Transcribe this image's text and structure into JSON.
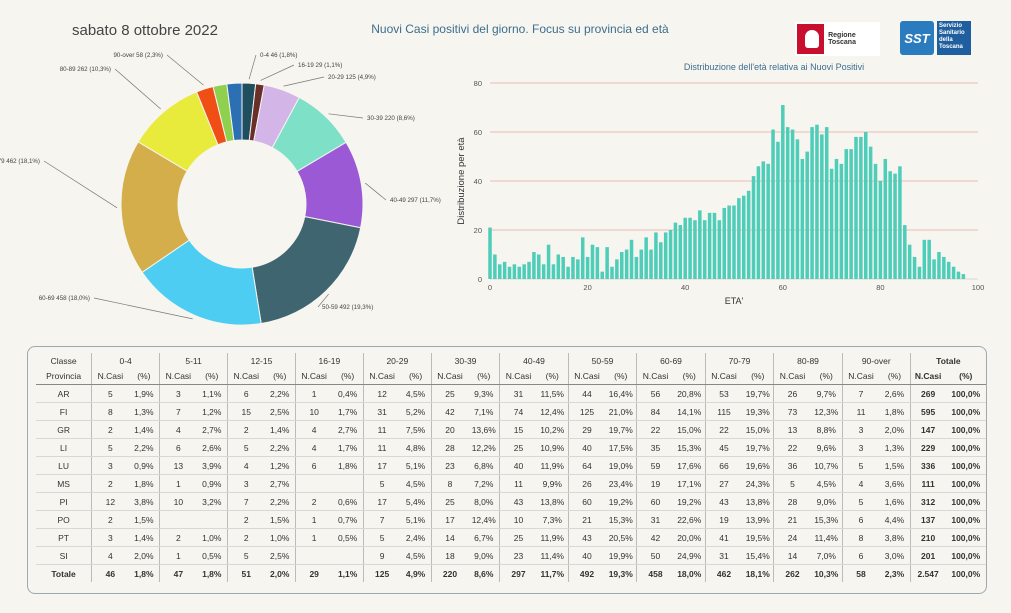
{
  "header": {
    "date": "sabato 8 ottobre 2022",
    "title": "Nuovi Casi positivi del giorno. Focus su provincia ed età",
    "logo_regione": "Regione Toscana",
    "logo_sst": "SST",
    "logo_sst_text": "Servizio Sanitario della Toscana"
  },
  "chart_data": [
    {
      "type": "pie",
      "donut": true,
      "slices": [
        {
          "label": "0-4",
          "value": 46,
          "pct": "1,8%",
          "color": "#1f4e5f"
        },
        {
          "label": "16-19",
          "value": 29,
          "pct": "1,1%",
          "color": "#6b2f2a"
        },
        {
          "label": "20-29",
          "value": 125,
          "pct": "4,9%",
          "color": "#d4b5e8"
        },
        {
          "label": "30-39",
          "value": 220,
          "pct": "8,6%",
          "color": "#7fe0c8"
        },
        {
          "label": "40-49",
          "value": 297,
          "pct": "11,7%",
          "color": "#9b59d6"
        },
        {
          "label": "50-59",
          "value": 492,
          "pct": "19,3%",
          "color": "#3f6670"
        },
        {
          "label": "60-69",
          "value": 458,
          "pct": "18,0%",
          "color": "#4dcdf2"
        },
        {
          "label": "70-79",
          "value": 462,
          "pct": "18,1%",
          "color": "#d4ae4a"
        },
        {
          "label": "80-89",
          "value": 262,
          "pct": "10,3%",
          "color": "#e8ea3c"
        },
        {
          "label": "90-over",
          "value": 58,
          "pct": "2,3%",
          "color": "#f04e14"
        },
        {
          "label": "5-11",
          "value": 47,
          "pct": "1,8%",
          "color": "#8fd14f"
        },
        {
          "label": "12-15",
          "value": 51,
          "pct": "2,0%",
          "color": "#2c6fb3"
        }
      ],
      "visible_labels": [
        "0-4 46 (1,8%)",
        "16-19 29 (1,1%)",
        "20-29 125 (4,9%)",
        "30-39 220 (8,6%)",
        "40-49 297 (11,7%)",
        "50-59 492 (19,3%)",
        "60-69 458 (18,0%)",
        "70-79 462 (18,1%)",
        "80-89 262 (10,3%)",
        "90-over 58 (2,3%)"
      ]
    },
    {
      "type": "bar",
      "title": "Distribuzione dell'età relativa ai Nuovi Positivi",
      "xlabel": "ETA'",
      "ylabel": "Distribuzione per età",
      "xlim": [
        0,
        100
      ],
      "ylim": [
        0,
        80
      ],
      "xticks": [
        0,
        20,
        40,
        60,
        80,
        100
      ],
      "yticks": [
        0,
        20,
        40,
        60,
        80
      ],
      "color": "#4ecdb8",
      "gridline_color": "#e8a8a0",
      "x": [
        0,
        1,
        2,
        3,
        4,
        5,
        6,
        7,
        8,
        9,
        10,
        11,
        12,
        13,
        14,
        15,
        16,
        17,
        18,
        19,
        20,
        21,
        22,
        23,
        24,
        25,
        26,
        27,
        28,
        29,
        30,
        31,
        32,
        33,
        34,
        35,
        36,
        37,
        38,
        39,
        40,
        41,
        42,
        43,
        44,
        45,
        46,
        47,
        48,
        49,
        50,
        51,
        52,
        53,
        54,
        55,
        56,
        57,
        58,
        59,
        60,
        61,
        62,
        63,
        64,
        65,
        66,
        67,
        68,
        69,
        70,
        71,
        72,
        73,
        74,
        75,
        76,
        77,
        78,
        79,
        80,
        81,
        82,
        83,
        84,
        85,
        86,
        87,
        88,
        89,
        90,
        91,
        92,
        93,
        94,
        95,
        96,
        97
      ],
      "values": [
        21,
        10,
        6,
        7,
        5,
        6,
        5,
        6,
        7,
        11,
        10,
        6,
        14,
        6,
        10,
        9,
        5,
        9,
        8,
        17,
        9,
        14,
        13,
        3,
        13,
        5,
        8,
        11,
        12,
        16,
        9,
        12,
        17,
        12,
        19,
        15,
        19,
        20,
        23,
        22,
        25,
        25,
        24,
        28,
        24,
        27,
        27,
        24,
        29,
        30,
        30,
        33,
        34,
        36,
        42,
        46,
        48,
        47,
        61,
        56,
        71,
        62,
        61,
        57,
        49,
        52,
        62,
        63,
        59,
        62,
        45,
        49,
        47,
        53,
        53,
        58,
        58,
        60,
        54,
        47,
        40,
        49,
        44,
        43,
        46,
        22,
        14,
        9,
        5,
        16,
        16,
        8,
        11,
        9,
        7,
        5,
        3,
        2
      ]
    }
  ],
  "table": {
    "classe_label": "Classe",
    "provincia_label": "Provincia",
    "groups": [
      "0-4",
      "5-11",
      "12-15",
      "16-19",
      "20-29",
      "30-39",
      "40-49",
      "50-59",
      "60-69",
      "70-79",
      "80-89",
      "90-over"
    ],
    "totale_label": "Totale",
    "sub_ncasi": "N.Casi",
    "sub_pct": "(%)",
    "rows": [
      {
        "prov": "AR",
        "cells": [
          [
            "5",
            "1,9%"
          ],
          [
            "3",
            "1,1%"
          ],
          [
            "6",
            "2,2%"
          ],
          [
            "1",
            "0,4%"
          ],
          [
            "12",
            "4,5%"
          ],
          [
            "25",
            "9,3%"
          ],
          [
            "31",
            "11,5%"
          ],
          [
            "44",
            "16,4%"
          ],
          [
            "56",
            "20,8%"
          ],
          [
            "53",
            "19,7%"
          ],
          [
            "26",
            "9,7%"
          ],
          [
            "7",
            "2,6%"
          ]
        ],
        "tot": "269",
        "totpct": "100,0%"
      },
      {
        "prov": "FI",
        "cells": [
          [
            "8",
            "1,3%"
          ],
          [
            "7",
            "1,2%"
          ],
          [
            "15",
            "2,5%"
          ],
          [
            "10",
            "1,7%"
          ],
          [
            "31",
            "5,2%"
          ],
          [
            "42",
            "7,1%"
          ],
          [
            "74",
            "12,4%"
          ],
          [
            "125",
            "21,0%"
          ],
          [
            "84",
            "14,1%"
          ],
          [
            "115",
            "19,3%"
          ],
          [
            "73",
            "12,3%"
          ],
          [
            "11",
            "1,8%"
          ]
        ],
        "tot": "595",
        "totpct": "100,0%"
      },
      {
        "prov": "GR",
        "cells": [
          [
            "2",
            "1,4%"
          ],
          [
            "4",
            "2,7%"
          ],
          [
            "2",
            "1,4%"
          ],
          [
            "4",
            "2,7%"
          ],
          [
            "11",
            "7,5%"
          ],
          [
            "20",
            "13,6%"
          ],
          [
            "15",
            "10,2%"
          ],
          [
            "29",
            "19,7%"
          ],
          [
            "22",
            "15,0%"
          ],
          [
            "22",
            "15,0%"
          ],
          [
            "13",
            "8,8%"
          ],
          [
            "3",
            "2,0%"
          ]
        ],
        "tot": "147",
        "totpct": "100,0%"
      },
      {
        "prov": "LI",
        "cells": [
          [
            "5",
            "2,2%"
          ],
          [
            "6",
            "2,6%"
          ],
          [
            "5",
            "2,2%"
          ],
          [
            "4",
            "1,7%"
          ],
          [
            "11",
            "4,8%"
          ],
          [
            "28",
            "12,2%"
          ],
          [
            "25",
            "10,9%"
          ],
          [
            "40",
            "17,5%"
          ],
          [
            "35",
            "15,3%"
          ],
          [
            "45",
            "19,7%"
          ],
          [
            "22",
            "9,6%"
          ],
          [
            "3",
            "1,3%"
          ]
        ],
        "tot": "229",
        "totpct": "100,0%"
      },
      {
        "prov": "LU",
        "cells": [
          [
            "3",
            "0,9%"
          ],
          [
            "13",
            "3,9%"
          ],
          [
            "4",
            "1,2%"
          ],
          [
            "6",
            "1,8%"
          ],
          [
            "17",
            "5,1%"
          ],
          [
            "23",
            "6,8%"
          ],
          [
            "40",
            "11,9%"
          ],
          [
            "64",
            "19,0%"
          ],
          [
            "59",
            "17,6%"
          ],
          [
            "66",
            "19,6%"
          ],
          [
            "36",
            "10,7%"
          ],
          [
            "5",
            "1,5%"
          ]
        ],
        "tot": "336",
        "totpct": "100,0%"
      },
      {
        "prov": "MS",
        "cells": [
          [
            "2",
            "1,8%"
          ],
          [
            "1",
            "0,9%"
          ],
          [
            "3",
            "2,7%"
          ],
          [
            "",
            ""
          ],
          [
            "5",
            "4,5%"
          ],
          [
            "8",
            "7,2%"
          ],
          [
            "11",
            "9,9%"
          ],
          [
            "26",
            "23,4%"
          ],
          [
            "19",
            "17,1%"
          ],
          [
            "27",
            "24,3%"
          ],
          [
            "5",
            "4,5%"
          ],
          [
            "4",
            "3,6%"
          ]
        ],
        "tot": "111",
        "totpct": "100,0%"
      },
      {
        "prov": "PI",
        "cells": [
          [
            "12",
            "3,8%"
          ],
          [
            "10",
            "3,2%"
          ],
          [
            "7",
            "2,2%"
          ],
          [
            "2",
            "0,6%"
          ],
          [
            "17",
            "5,4%"
          ],
          [
            "25",
            "8,0%"
          ],
          [
            "43",
            "13,8%"
          ],
          [
            "60",
            "19,2%"
          ],
          [
            "60",
            "19,2%"
          ],
          [
            "43",
            "13,8%"
          ],
          [
            "28",
            "9,0%"
          ],
          [
            "5",
            "1,6%"
          ]
        ],
        "tot": "312",
        "totpct": "100,0%"
      },
      {
        "prov": "PO",
        "cells": [
          [
            "2",
            "1,5%"
          ],
          [
            "",
            ""
          ],
          [
            "2",
            "1,5%"
          ],
          [
            "1",
            "0,7%"
          ],
          [
            "7",
            "5,1%"
          ],
          [
            "17",
            "12,4%"
          ],
          [
            "10",
            "7,3%"
          ],
          [
            "21",
            "15,3%"
          ],
          [
            "31",
            "22,6%"
          ],
          [
            "19",
            "13,9%"
          ],
          [
            "21",
            "15,3%"
          ],
          [
            "6",
            "4,4%"
          ]
        ],
        "tot": "137",
        "totpct": "100,0%"
      },
      {
        "prov": "PT",
        "cells": [
          [
            "3",
            "1,4%"
          ],
          [
            "2",
            "1,0%"
          ],
          [
            "2",
            "1,0%"
          ],
          [
            "1",
            "0,5%"
          ],
          [
            "5",
            "2,4%"
          ],
          [
            "14",
            "6,7%"
          ],
          [
            "25",
            "11,9%"
          ],
          [
            "43",
            "20,5%"
          ],
          [
            "42",
            "20,0%"
          ],
          [
            "41",
            "19,5%"
          ],
          [
            "24",
            "11,4%"
          ],
          [
            "8",
            "3,8%"
          ]
        ],
        "tot": "210",
        "totpct": "100,0%"
      },
      {
        "prov": "SI",
        "cells": [
          [
            "4",
            "2,0%"
          ],
          [
            "1",
            "0,5%"
          ],
          [
            "5",
            "2,5%"
          ],
          [
            "",
            ""
          ],
          [
            "9",
            "4,5%"
          ],
          [
            "18",
            "9,0%"
          ],
          [
            "23",
            "11,4%"
          ],
          [
            "40",
            "19,9%"
          ],
          [
            "50",
            "24,9%"
          ],
          [
            "31",
            "15,4%"
          ],
          [
            "14",
            "7,0%"
          ],
          [
            "6",
            "3,0%"
          ]
        ],
        "tot": "201",
        "totpct": "100,0%"
      }
    ],
    "total_row": {
      "prov": "Totale",
      "cells": [
        [
          "46",
          "1,8%"
        ],
        [
          "47",
          "1,8%"
        ],
        [
          "51",
          "2,0%"
        ],
        [
          "29",
          "1,1%"
        ],
        [
          "125",
          "4,9%"
        ],
        [
          "220",
          "8,6%"
        ],
        [
          "297",
          "11,7%"
        ],
        [
          "492",
          "19,3%"
        ],
        [
          "458",
          "18,0%"
        ],
        [
          "462",
          "18,1%"
        ],
        [
          "262",
          "10,3%"
        ],
        [
          "58",
          "2,3%"
        ]
      ],
      "tot": "2.547",
      "totpct": "100,0%"
    }
  }
}
